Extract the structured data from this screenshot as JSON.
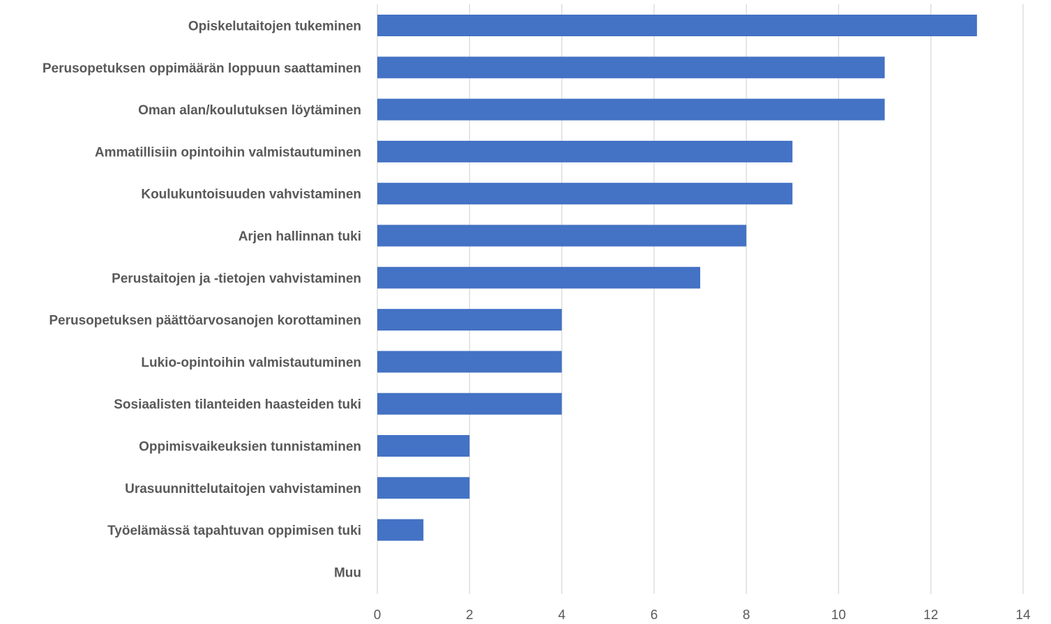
{
  "chart_data": {
    "type": "bar",
    "orientation": "horizontal",
    "categories": [
      "Opiskelutaitojen tukeminen",
      "Perusopetuksen oppimäärän loppuun saattaminen",
      "Oman alan/koulutuksen löytäminen",
      "Ammatillisiin opintoihin valmistautuminen",
      "Koulukuntoisuuden vahvistaminen",
      "Arjen hallinnan tuki",
      "Perustaitojen ja -tietojen vahvistaminen",
      "Perusopetuksen päättöarvosanojen korottaminen",
      "Lukio-opintoihin valmistautuminen",
      "Sosiaalisten tilanteiden haasteiden tuki",
      "Oppimisvaikeuksien tunnistaminen",
      "Urasuunnittelutaitojen vahvistaminen",
      "Työelämässä tapahtuvan oppimisen tuki",
      "Muu"
    ],
    "values": [
      13,
      11,
      11,
      9,
      9,
      8,
      7,
      4,
      4,
      4,
      2,
      2,
      1,
      0
    ],
    "xlim": [
      0,
      14
    ],
    "xticks": [
      "0",
      "2",
      "4",
      "6",
      "8",
      "10",
      "12",
      "14"
    ],
    "title": "",
    "xlabel": "",
    "ylabel": "",
    "grid": "vertical",
    "legend": "none",
    "bar_color": "#4472c4",
    "grid_color": "#d9d9d9",
    "label_color": "#595959"
  }
}
